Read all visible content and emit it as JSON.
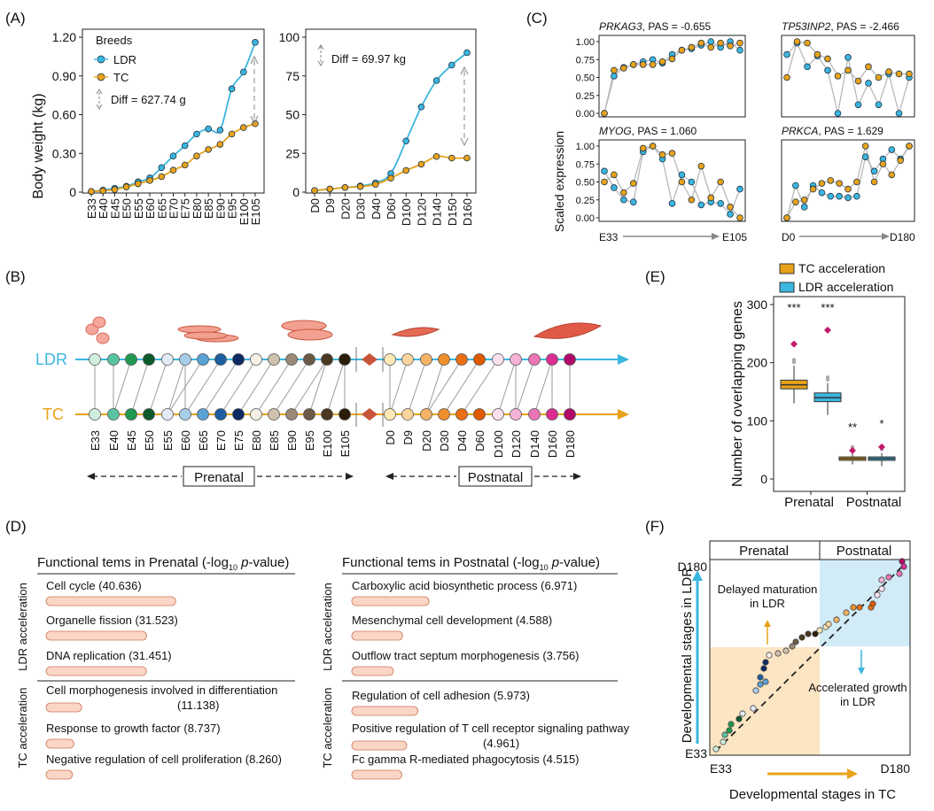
{
  "panelA": {
    "label": "(A)",
    "ylabel": "Body weight (kg)",
    "legend_title": "Breeds",
    "legend_ldr": "LDR",
    "legend_tc": "TC",
    "left": {
      "diff_label": "Diff = 627.74 g",
      "yticks": [
        "0",
        "0.30",
        "0.60",
        "0.90",
        "1.20"
      ],
      "chart_data": {
        "type": "scatter",
        "x": [
          "E33",
          "E40",
          "E45",
          "E50",
          "E55",
          "E60",
          "E65",
          "E70",
          "E75",
          "E80",
          "E85",
          "E90",
          "E95",
          "E100",
          "E105"
        ],
        "ylim": [
          0,
          1.2
        ],
        "series": [
          {
            "name": "LDR",
            "values": [
              0.005,
              0.015,
              0.03,
              0.045,
              0.08,
              0.11,
              0.19,
              0.28,
              0.36,
              0.45,
              0.49,
              0.48,
              0.8,
              0.93,
              1.16
            ]
          },
          {
            "name": "TC",
            "values": [
              0.005,
              0.01,
              0.02,
              0.04,
              0.065,
              0.09,
              0.12,
              0.17,
              0.21,
              0.28,
              0.33,
              0.37,
              0.45,
              0.5,
              0.53
            ]
          }
        ]
      }
    },
    "right": {
      "diff_label": "Diff = 69.97 kg",
      "yticks": [
        "0",
        "25",
        "50",
        "75",
        "100"
      ],
      "chart_data": {
        "type": "scatter",
        "x": [
          "D0",
          "D9",
          "D20",
          "D30",
          "D40",
          "D60",
          "D100",
          "D120",
          "D140",
          "D150",
          "D160"
        ],
        "ylim": [
          0,
          100
        ],
        "series": [
          {
            "name": "LDR",
            "values": [
              1,
              2,
              3,
              4,
              6,
              12,
              33,
              55,
              72,
              82,
              90
            ]
          },
          {
            "name": "TC",
            "values": [
              1,
              2,
              3,
              3.5,
              5,
              9,
              14,
              18,
              23,
              22,
              22
            ]
          }
        ]
      }
    }
  },
  "panelB": {
    "label": "(B)",
    "ldr_label": "LDR",
    "tc_label": "TC",
    "stages": [
      "E33",
      "E40",
      "E45",
      "E50",
      "E55",
      "E60",
      "E65",
      "E70",
      "E75",
      "E80",
      "E85",
      "E90",
      "E95",
      "E100",
      "E105",
      "D0",
      "D9",
      "D20",
      "D30",
      "D40",
      "D60",
      "D100",
      "D120",
      "D140",
      "D160",
      "D180"
    ],
    "prenatal_label": "Prenatal",
    "postnatal_label": "Postnatal",
    "colors": {
      "ldr_line": "#3bb6e0",
      "tc_line": "#e8a21a"
    }
  },
  "panelC": {
    "label": "(C)",
    "ylabel": "Scaled  expression",
    "yticks": [
      "0.00",
      "0.25",
      "0.50",
      "0.75",
      "1.00"
    ],
    "x_prenatal_start": "E33",
    "x_prenatal_end": "E105",
    "x_postnatal_start": "D0",
    "x_postnatal_end": "D180",
    "charts": [
      {
        "gene": "PRKAG3",
        "pas": ", PAS = -0.655",
        "chart_data": {
          "type": "line",
          "series": [
            {
              "name": "LDR",
              "values": [
                0.0,
                0.52,
                0.64,
                0.68,
                0.72,
                0.75,
                0.7,
                0.82,
                0.88,
                0.9,
                0.95,
                1.0,
                0.92,
                1.0,
                0.88
              ]
            },
            {
              "name": "TC",
              "values": [
                0.0,
                0.6,
                0.63,
                0.68,
                0.68,
                0.68,
                0.72,
                0.76,
                0.88,
                0.92,
                0.98,
                0.92,
                0.98,
                0.94,
                0.98
              ]
            }
          ]
        }
      },
      {
        "gene": "TP53INP2",
        "pas": ", PAS = -2.466",
        "chart_data": {
          "type": "line",
          "series": [
            {
              "name": "LDR",
              "values": [
                0.82,
                0.98,
                0.65,
                0.8,
                0.6,
                0.0,
                0.78,
                0.12,
                0.42,
                0.12,
                0.55,
                0.0,
                0.5
              ]
            },
            {
              "name": "TC",
              "values": [
                0.5,
                1.0,
                0.98,
                0.82,
                0.76,
                0.52,
                0.6,
                0.45,
                0.65,
                0.5,
                0.58,
                0.55,
                0.55
              ]
            }
          ]
        }
      },
      {
        "gene": "MYOG",
        "pas": ", PAS = 1.060",
        "chart_data": {
          "type": "line",
          "series": [
            {
              "name": "LDR",
              "values": [
                0.65,
                0.42,
                0.25,
                0.22,
                0.92,
                1.0,
                0.82,
                0.2,
                0.6,
                0.5,
                0.18,
                0.22,
                0.2,
                0.05,
                0.4
              ]
            },
            {
              "name": "TC",
              "values": [
                0.5,
                0.6,
                0.35,
                0.48,
                0.97,
                1.0,
                0.88,
                0.9,
                0.5,
                0.25,
                0.72,
                0.28,
                0.5,
                0.15,
                0.0
              ]
            }
          ]
        }
      },
      {
        "gene": "PRKCA",
        "pas": ", PAS = 1.629",
        "chart_data": {
          "type": "line",
          "series": [
            {
              "name": "LDR",
              "values": [
                0.0,
                0.45,
                0.15,
                0.45,
                0.35,
                0.3,
                0.3,
                0.28,
                0.3,
                0.85,
                0.65,
                0.82,
                0.95,
                0.82,
                1.0
              ]
            },
            {
              "name": "TC",
              "values": [
                0.0,
                0.22,
                0.25,
                0.4,
                0.48,
                0.52,
                0.48,
                0.4,
                0.5,
                1.0,
                0.5,
                0.75,
                0.6,
                0.8,
                1.0
              ]
            }
          ]
        }
      }
    ]
  },
  "panelD": {
    "label": "(D)",
    "prenatal_title_a": "Functional tems in Prenatal (-log",
    "prenatal_title_sub": "10",
    "prenatal_title_b": " p",
    "prenatal_title_c": "-value)",
    "postnatal_title_a": "Functional tems in Postnatal (-log",
    "postnatal_title_sub": "10",
    "postnatal_title_b": " p",
    "postnatal_title_c": "-value)",
    "ldr_acceleration": "LDR acceleration",
    "tc_acceleration": "TC acceleration",
    "chart_data": {
      "type": "bar",
      "prenatal_ldr": [
        {
          "term": "Cell cycle (40.636)",
          "value": 40.636
        },
        {
          "term": "Organelle fission (31.523)",
          "value": 31.523
        },
        {
          "term": "DNA replication (31.451)",
          "value": 31.451
        }
      ],
      "prenatal_tc": [
        {
          "term": "Cell morphogenesis involved in differentiation",
          "term2": "(11.138)",
          "value": 11.138
        },
        {
          "term": "Response to growth factor (8.737)",
          "value": 8.737
        },
        {
          "term": "Negative regulation of cell proliferation (8.260)",
          "value": 8.26
        }
      ],
      "postnatal_ldr": [
        {
          "term": "Carboxylic acid biosynthetic process  (6.971)",
          "value": 6.971
        },
        {
          "term": "Mesenchymal cell development  (4.588)",
          "value": 4.588
        },
        {
          "term": "Outflow tract septum morphogenesis (3.756)",
          "value": 3.756
        }
      ],
      "postnatal_tc": [
        {
          "term": "Regulation of cell adhesion (5.973)",
          "value": 5.973
        },
        {
          "term": "Positive regulation of T cell receptor signaling pathway",
          "term2": "(4.961)",
          "value": 4.961
        },
        {
          "term": "Fc gamma R-mediated phagocytosis (4.515)",
          "value": 4.515
        }
      ]
    }
  },
  "panelE": {
    "label": "(E)",
    "legend_tc": "TC acceleration",
    "legend_ldr": "LDR acceleration",
    "ylabel": "Number of overlapping genes",
    "yticks": [
      "0",
      "100",
      "200",
      "300"
    ],
    "chart_data": {
      "type": "box",
      "categories": [
        "Prenatal",
        "Postnatal"
      ],
      "ylim": [
        0,
        300
      ],
      "series": [
        {
          "name": "TC acceleration",
          "colors": "#e8a21a",
          "boxes": [
            {
              "q1": 155,
              "median": 162,
              "q3": 170,
              "min": 130,
              "max": 195,
              "observed": 232,
              "sig": "***"
            },
            {
              "q1": 32,
              "median": 35,
              "q3": 38,
              "min": 25,
              "max": 45,
              "observed": 49,
              "sig": "**"
            }
          ]
        },
        {
          "name": "LDR acceleration",
          "colors": "#3bb6e0",
          "boxes": [
            {
              "q1": 133,
              "median": 140,
              "q3": 148,
              "min": 110,
              "max": 165,
              "observed": 256,
              "sig": "***"
            },
            {
              "q1": 32,
              "median": 35,
              "q3": 38,
              "min": 22,
              "max": 45,
              "observed": 55,
              "sig": "*"
            }
          ]
        }
      ]
    }
  },
  "panelF": {
    "label": "(F)",
    "prenatal": "Prenatal",
    "postnatal": "Postnatal",
    "ylabel": "Developmental stages in LDR",
    "xlabel": "Developmental stages in TC",
    "y_top": "D180",
    "y_bottom": "E33",
    "x_left": "E33",
    "x_right": "D180",
    "delayed_line1": "Delayed maturation",
    "delayed_line2": "in LDR",
    "accel_line1": "Accelerated growth",
    "accel_line2": "in LDR"
  }
}
